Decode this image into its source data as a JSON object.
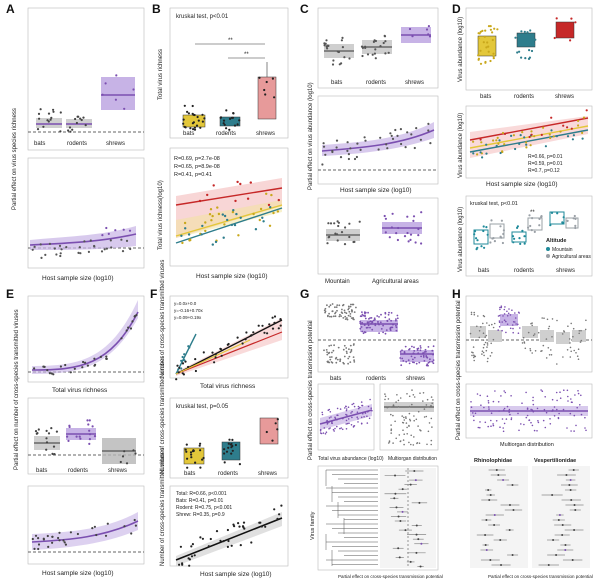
{
  "panel_letters": [
    "A",
    "B",
    "C",
    "D",
    "E",
    "F",
    "G",
    "H"
  ],
  "groups_ABC": [
    "bats",
    "rodents",
    "shrews"
  ],
  "colors": {
    "purple": "#7b4fb0",
    "purple_fill": "#c7b3e6",
    "gray": "#8a8a8a",
    "gray_fill": "#cfcfcf",
    "red": "#c62828",
    "yellow": "#e3c73a",
    "teal": "#2e7d8c",
    "mountain": "#1f8a9a",
    "agri": "#9aa0a6",
    "black": "#111111"
  },
  "A": {
    "ylabel": "Partial effect on virus species richness",
    "xlabel": "Host sample size (log10)"
  },
  "B": {
    "stat": "kruskal test, p<0.01",
    "ylabel_top": "Total virus richness",
    "ylabel_bottom": "Total virus richness(log10)",
    "xlabel": "Host sample size (log10)",
    "sig1": "**",
    "sig2": "**",
    "legend": [
      "R=0.69, p=2.7e-08",
      "R=0.65, p=8.9e-08",
      "R=0.41, p=0.41"
    ]
  },
  "C": {
    "ylabel": "Partial effect on virus abundance (log10)",
    "xlabel": "Host sample size (log10)",
    "cats_bottom": [
      "Mountain",
      "Agricultural areas"
    ]
  },
  "D": {
    "ylabel_top": "Virus abundance (log10)",
    "ylabel_mid": "Virus abundance (log10)",
    "ylabel_bot": "Virus abundance (log10)",
    "xlabel_mid": "Host sample size (log10)",
    "stat": "kruskal test, p<0.01",
    "sig": "**",
    "legend_mid": [
      "R=0.66, p=0.01",
      "R=0.59, p=0.01",
      "R=0.7, p=0.12"
    ],
    "legend_title": "Altitude",
    "legend_items": [
      "Mountain",
      "Agricultural areas"
    ]
  },
  "E": {
    "ylabel_top": "Partial effect on number of cross-species transmitted viruses",
    "xlabel_top": "Total virus richness",
    "xlabel_bottom": "Host sample size (log10)"
  },
  "F": {
    "ylabel_top": "Number of cross-species transmitted viruses",
    "xlabel_top": "Total virus richness",
    "ylabel_mid": "Number of cross-species transmitted viruses",
    "stat": "kruskal test, p=0.05",
    "ylabel_bot": "Number of cross-species transmitted viruses",
    "xlabel_bot": "Host sample size (log10)",
    "legend_top": [
      "y=0.0x+0.0",
      "y=-0.16+0.70x",
      "y=0.09+0.19x"
    ],
    "legend_bot": [
      "Total: R=0.66, p<0.001",
      "Bats: R=0.41, p=0.01",
      "Rodent: R=0.75, p<0.001",
      "Shrew: R=0.35, p=0.9"
    ]
  },
  "G": {
    "ylabel": "Partial effect on cross-species transmission potential",
    "xlabel_a": "Total virus abundance (log10)",
    "xlabel_b": "Multiorgan distribution",
    "ylabel_tree": "Virus family",
    "xlabel_bottom": "Partial effect on cross-species transmission potential"
  },
  "H": {
    "ylabel": "Partial effect on cross-species transmission potential",
    "xlabel_mid": "Multiorgan distribution",
    "fam1": "Rhinolophidae",
    "fam2": "Vespertilionidae",
    "xlabel_bottom": "Partial effect on cross-species transmission potential"
  },
  "chart_data": [
    {
      "panel": "A-top",
      "type": "box",
      "categories": [
        "bats",
        "rodents",
        "shrews"
      ],
      "values": [
        10,
        9,
        52
      ],
      "ylabel": "Partial effect on virus species richness"
    },
    {
      "panel": "A-bottom",
      "type": "line",
      "x": [
        0.5,
        1,
        1.5,
        2,
        2.5,
        3
      ],
      "y": [
        2,
        3,
        4,
        6,
        9,
        16
      ],
      "xlabel": "Host sample size (log10)"
    },
    {
      "panel": "B-top",
      "type": "box",
      "categories": [
        "bats",
        "rodents",
        "shrews"
      ],
      "values": [
        13,
        11,
        40
      ],
      "ylabel": "Total virus richness"
    },
    {
      "panel": "B-bottom",
      "type": "line",
      "series": [
        {
          "values": [
            0.7,
            2.6
          ]
        },
        {
          "values": [
            0.5,
            2.3
          ]
        },
        {
          "values": [
            1.8,
            2.7
          ]
        }
      ],
      "x": [
        0.5,
        3.5
      ],
      "xlabel": "Host sample size (log10)",
      "ylabel": "Total virus richness(log10)"
    },
    {
      "panel": "C-top",
      "type": "box",
      "categories": [
        "bats",
        "rodents",
        "shrews"
      ],
      "values": [
        3.0,
        3.3,
        4.4
      ]
    },
    {
      "panel": "C-mid",
      "type": "line",
      "x": [
        0.5,
        1.5,
        2.5,
        3.5
      ],
      "y": [
        0.2,
        0.4,
        0.9,
        2.0
      ],
      "xlabel": "Host sample size (log10)"
    },
    {
      "panel": "C-bottom",
      "type": "box",
      "categories": [
        "Mountain",
        "Agricultural areas"
      ],
      "values": [
        2.3,
        3.0
      ]
    },
    {
      "panel": "D-top",
      "type": "box",
      "categories": [
        "bats",
        "rodents",
        "shrews"
      ],
      "values": [
        5.1,
        5.7,
        6.9
      ],
      "ylabel": "Virus abundance (log10)"
    },
    {
      "panel": "D-mid",
      "type": "line",
      "series": [
        {
          "values": [
            4.8,
            7.2
          ]
        },
        {
          "values": [
            4.6,
            6.7
          ]
        },
        {
          "values": [
            5.9,
            7.6
          ]
        }
      ],
      "x": [
        0.5,
        3.5
      ],
      "xlabel": "Host sample size (log10)"
    },
    {
      "panel": "D-bottom",
      "type": "box",
      "categories": [
        "bats",
        "rodents",
        "shrews"
      ],
      "series": [
        {
          "name": "Mountain",
          "values": [
            5.0,
            4.8,
            7.1
          ]
        },
        {
          "name": "Agricultural areas",
          "values": [
            5.9,
            6.3,
            6.6
          ]
        }
      ]
    },
    {
      "panel": "E-top",
      "type": "line",
      "x": [
        0,
        20,
        40,
        60,
        80,
        100
      ],
      "y": [
        0,
        0.5,
        1,
        3,
        8,
        25
      ],
      "xlabel": "Total virus richness"
    },
    {
      "panel": "E-mid",
      "type": "box",
      "categories": [
        "bats",
        "rodents",
        "shrews"
      ],
      "values": [
        3,
        6,
        2
      ]
    },
    {
      "panel": "E-bottom",
      "type": "line",
      "x": [
        0.5,
        1.5,
        2.5,
        3.5
      ],
      "y": [
        2.5,
        3.5,
        5,
        7
      ],
      "xlabel": "Host sample size (log10)"
    },
    {
      "panel": "F-top",
      "type": "scatter",
      "series": [
        {
          "values": [
            0,
            70
          ]
        },
        {
          "values": [
            0,
            55
          ]
        },
        {
          "values": [
            0,
            20
          ]
        },
        {
          "values": [
            0,
            60
          ]
        }
      ],
      "x": [
        0,
        150
      ],
      "xlabel": "Total virus richness"
    },
    {
      "panel": "F-mid",
      "type": "box",
      "categories": [
        "bats",
        "rodents",
        "shrews"
      ],
      "values": [
        6,
        7,
        16
      ]
    },
    {
      "panel": "F-bottom",
      "type": "line",
      "x": [
        0.5,
        3.5
      ],
      "y": [
        1,
        25
      ],
      "xlabel": "Host sample size (log10)"
    },
    {
      "panel": "G",
      "type": "box",
      "categories": [
        "bats",
        "rodents",
        "shrews"
      ],
      "values": [
        0.3,
        0.6,
        -0.4
      ]
    },
    {
      "panel": "H",
      "type": "box",
      "values": [
        0.1,
        -0.1,
        0.5,
        0.0,
        0.1,
        0.0,
        0.0
      ]
    }
  ]
}
